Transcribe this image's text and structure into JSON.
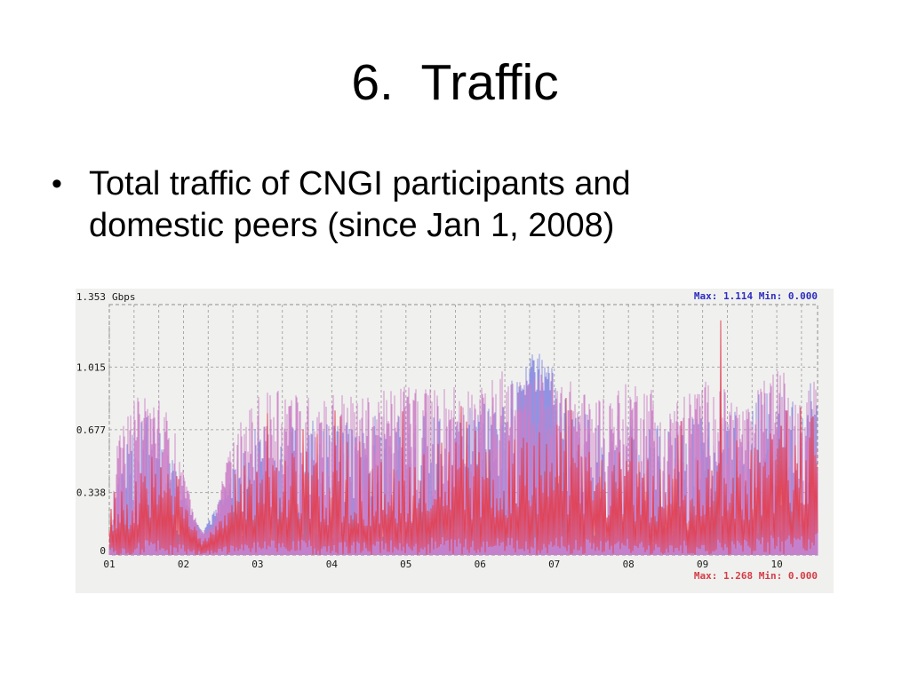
{
  "slide": {
    "title": "6.  Traffic",
    "bullet_marker": "•",
    "bullet_text": "Total traffic of CNGI participants and domestic peers (since Jan 1, 2008)"
  },
  "chart_data": {
    "type": "area",
    "title": "Total traffic of CNGI participants and domestic peers (since Jan 1, 2008)",
    "unit_label": "Gbps",
    "ylim": [
      0,
      1.353
    ],
    "grid": true,
    "x_ticks": [
      "01",
      "02",
      "03",
      "04",
      "05",
      "06",
      "07",
      "08",
      "09",
      "10"
    ],
    "y_ticks": [
      {
        "label": "0",
        "value": 0
      },
      {
        "label": "0.338",
        "value": 0.338
      },
      {
        "label": "0.677",
        "value": 0.677
      },
      {
        "label": "1.015",
        "value": 1.015
      },
      {
        "label": "1.353",
        "value": 1.353
      }
    ],
    "stats": {
      "top": {
        "text": "Max: 1.114 Min: 0.000",
        "max": 1.114,
        "min": 0.0,
        "color": "#2d2dc0"
      },
      "bottom": {
        "text": "Max: 1.268 Min: 0.000",
        "max": 1.268,
        "min": 0.0,
        "color": "#d43d46"
      }
    },
    "colors": {
      "background": "#f0f0ee",
      "grid": "#a9a9a9",
      "border": "#8e8e8e",
      "tick_text": "#1a1a1a"
    },
    "series": [
      {
        "name": "baseline-salmon",
        "kind": "area",
        "color": "#f2bcb4",
        "envelope_peak": [
          [
            1,
            0.12
          ],
          [
            10.55,
            0.12
          ]
        ]
      },
      {
        "name": "traffic-blue",
        "kind": "area",
        "color": "#9193e2",
        "envelope_peak": [
          [
            1,
            0.08
          ],
          [
            1.2,
            0.65
          ],
          [
            1.5,
            0.75
          ],
          [
            1.8,
            0.6
          ],
          [
            2.05,
            0.3
          ],
          [
            2.25,
            0.12
          ],
          [
            2.5,
            0.32
          ],
          [
            2.8,
            0.6
          ],
          [
            3,
            0.7
          ],
          [
            3.5,
            0.75
          ],
          [
            4,
            0.7
          ],
          [
            4.5,
            0.75
          ],
          [
            5,
            0.8
          ],
          [
            5.5,
            0.85
          ],
          [
            6,
            0.8
          ],
          [
            6.3,
            0.9
          ],
          [
            6.55,
            1.05
          ],
          [
            6.8,
            1.114
          ],
          [
            7,
            1.0
          ],
          [
            7.2,
            0.8
          ],
          [
            7.5,
            0.75
          ],
          [
            8,
            0.75
          ],
          [
            8.5,
            0.7
          ],
          [
            9,
            0.75
          ],
          [
            9.5,
            0.8
          ],
          [
            10,
            0.95
          ],
          [
            10.55,
            1.0
          ]
        ]
      },
      {
        "name": "traffic-pink",
        "kind": "area",
        "color": "#cb7dc6",
        "envelope_peak": [
          [
            1,
            0.1
          ],
          [
            1.1,
            0.6
          ],
          [
            1.3,
            0.82
          ],
          [
            1.5,
            0.9
          ],
          [
            1.7,
            0.85
          ],
          [
            1.9,
            0.65
          ],
          [
            2.1,
            0.3
          ],
          [
            2.25,
            0.14
          ],
          [
            2.4,
            0.18
          ],
          [
            2.6,
            0.55
          ],
          [
            2.8,
            0.75
          ],
          [
            3,
            0.85
          ],
          [
            3.3,
            0.95
          ],
          [
            3.6,
            0.85
          ],
          [
            4,
            0.9
          ],
          [
            4.4,
            0.85
          ],
          [
            4.8,
            0.9
          ],
          [
            5.1,
            0.95
          ],
          [
            5.4,
            0.9
          ],
          [
            5.7,
            0.95
          ],
          [
            6,
            0.9
          ],
          [
            6.3,
            1.0
          ],
          [
            6.6,
            0.95
          ],
          [
            6.9,
            1.0
          ],
          [
            7.2,
            0.95
          ],
          [
            7.5,
            0.85
          ],
          [
            7.8,
            0.9
          ],
          [
            8.1,
            0.95
          ],
          [
            8.4,
            0.9
          ],
          [
            8.7,
            0.85
          ],
          [
            9,
            0.95
          ],
          [
            9.3,
            0.9
          ],
          [
            9.6,
            0.8
          ],
          [
            9.9,
            1.0
          ],
          [
            10.2,
            1.0
          ],
          [
            10.55,
            1.02
          ]
        ]
      },
      {
        "name": "traffic-red",
        "kind": "line",
        "color": "#e04153",
        "envelope_mid": [
          [
            1,
            0.15
          ],
          [
            1.5,
            0.35
          ],
          [
            2,
            0.25
          ],
          [
            2.25,
            0.06
          ],
          [
            2.6,
            0.2
          ],
          [
            3,
            0.3
          ],
          [
            3.5,
            0.35
          ],
          [
            4,
            0.3
          ],
          [
            4.5,
            0.3
          ],
          [
            5,
            0.35
          ],
          [
            5.5,
            0.4
          ],
          [
            6,
            0.35
          ],
          [
            6.5,
            0.4
          ],
          [
            7,
            0.45
          ],
          [
            7.5,
            0.35
          ],
          [
            8,
            0.35
          ],
          [
            8.5,
            0.3
          ],
          [
            9,
            0.35
          ],
          [
            9.5,
            0.35
          ],
          [
            10,
            0.45
          ],
          [
            10.55,
            0.5
          ]
        ],
        "envelope_peak": [
          [
            1,
            0.3
          ],
          [
            1.5,
            0.6
          ],
          [
            2,
            0.4
          ],
          [
            2.25,
            0.12
          ],
          [
            2.6,
            0.5
          ],
          [
            3,
            0.7
          ],
          [
            3.45,
            1.12
          ],
          [
            3.6,
            0.75
          ],
          [
            4,
            0.8
          ],
          [
            4.5,
            0.75
          ],
          [
            5,
            0.8
          ],
          [
            5.5,
            0.85
          ],
          [
            6,
            0.8
          ],
          [
            6.5,
            0.85
          ],
          [
            7,
            0.9
          ],
          [
            7.5,
            0.8
          ],
          [
            8,
            0.85
          ],
          [
            8.7,
            0.8
          ],
          [
            9.25,
            1.268
          ],
          [
            9.45,
            0.75
          ],
          [
            10,
            0.9
          ],
          [
            10.55,
            0.95
          ]
        ]
      }
    ],
    "render": {
      "seed": 987654321,
      "months_start": 1,
      "months_end": 10.55,
      "gap_probability": 0.1,
      "spike_probability": 0.06,
      "smooth_region": [
        1.95,
        2.65
      ],
      "blue_solid_region": [
        6.5,
        7.0
      ],
      "forced_spike": {
        "t": 9.25,
        "value": 1.268
      }
    }
  }
}
